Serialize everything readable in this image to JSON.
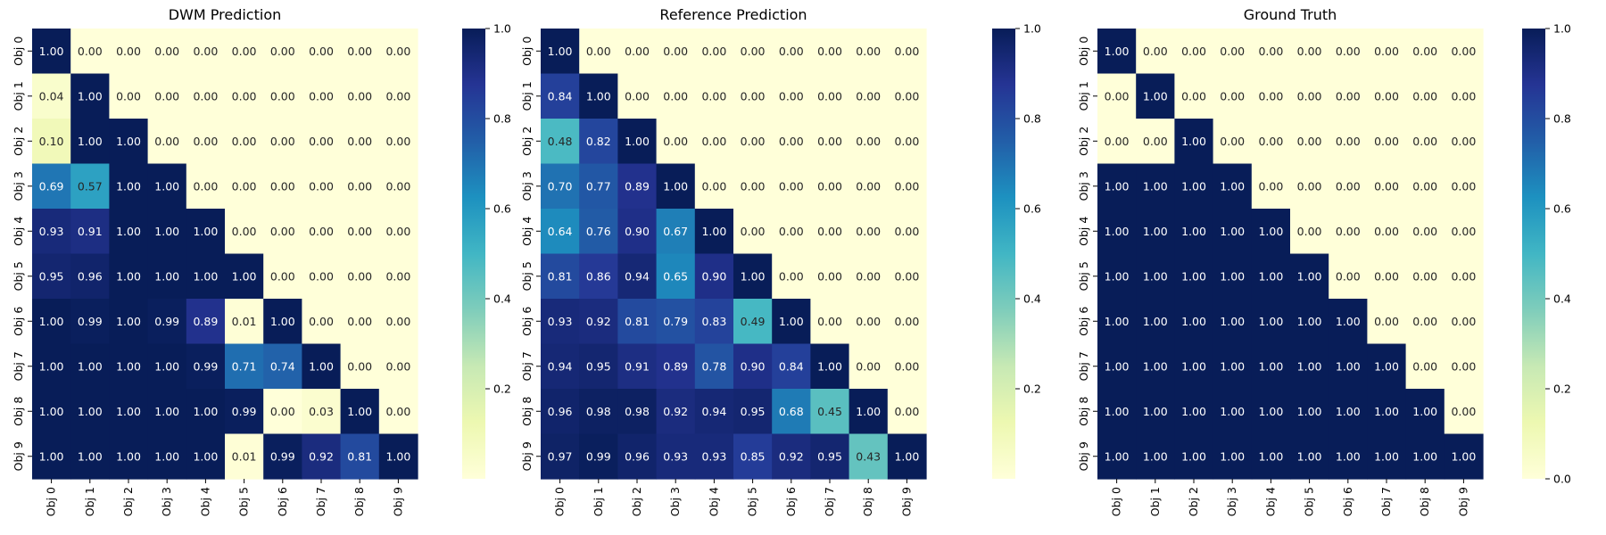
{
  "chart_data": [
    {
      "type": "heatmap",
      "title": "DWM Prediction",
      "x_labels": [
        "Obj 0",
        "Obj 1",
        "Obj 2",
        "Obj 3",
        "Obj 4",
        "Obj 5",
        "Obj 6",
        "Obj 7",
        "Obj 8",
        "Obj 9"
      ],
      "y_labels": [
        "Obj 0",
        "Obj 1",
        "Obj 2",
        "Obj 3",
        "Obj 4",
        "Obj 5",
        "Obj 6",
        "Obj 7",
        "Obj 8",
        "Obj 9"
      ],
      "values": [
        [
          1.0,
          0.0,
          0.0,
          0.0,
          0.0,
          0.0,
          0.0,
          0.0,
          0.0,
          0.0
        ],
        [
          0.04,
          1.0,
          0.0,
          0.0,
          0.0,
          0.0,
          0.0,
          0.0,
          0.0,
          0.0
        ],
        [
          0.1,
          1.0,
          1.0,
          0.0,
          0.0,
          0.0,
          0.0,
          0.0,
          0.0,
          0.0
        ],
        [
          0.69,
          0.57,
          1.0,
          1.0,
          0.0,
          0.0,
          0.0,
          0.0,
          0.0,
          0.0
        ],
        [
          0.93,
          0.91,
          1.0,
          1.0,
          1.0,
          0.0,
          0.0,
          0.0,
          0.0,
          0.0
        ],
        [
          0.95,
          0.96,
          1.0,
          1.0,
          1.0,
          1.0,
          0.0,
          0.0,
          0.0,
          0.0
        ],
        [
          1.0,
          0.99,
          1.0,
          0.99,
          0.89,
          0.01,
          1.0,
          0.0,
          0.0,
          0.0
        ],
        [
          1.0,
          1.0,
          1.0,
          1.0,
          0.99,
          0.71,
          0.74,
          1.0,
          0.0,
          0.0
        ],
        [
          1.0,
          1.0,
          1.0,
          1.0,
          1.0,
          0.99,
          0.0,
          0.03,
          1.0,
          0.0
        ],
        [
          1.0,
          1.0,
          1.0,
          1.0,
          1.0,
          0.01,
          0.99,
          0.92,
          0.81,
          1.0
        ]
      ],
      "colormap": "YlGnBu",
      "color_range": [
        0.0,
        1.0
      ],
      "colorbar_ticks": [
        0.2,
        0.4,
        0.6,
        0.8,
        1.0
      ]
    },
    {
      "type": "heatmap",
      "title": "Reference Prediction",
      "x_labels": [
        "Obj 0",
        "Obj 1",
        "Obj 2",
        "Obj 3",
        "Obj 4",
        "Obj 5",
        "Obj 6",
        "Obj 7",
        "Obj 8",
        "Obj 9"
      ],
      "y_labels": [
        "Obj 0",
        "Obj 1",
        "Obj 2",
        "Obj 3",
        "Obj 4",
        "Obj 5",
        "Obj 6",
        "Obj 7",
        "Obj 8",
        "Obj 9"
      ],
      "values": [
        [
          1.0,
          0.0,
          0.0,
          0.0,
          0.0,
          0.0,
          0.0,
          0.0,
          0.0,
          0.0
        ],
        [
          0.84,
          1.0,
          0.0,
          0.0,
          0.0,
          0.0,
          0.0,
          0.0,
          0.0,
          0.0
        ],
        [
          0.48,
          0.82,
          1.0,
          0.0,
          0.0,
          0.0,
          0.0,
          0.0,
          0.0,
          0.0
        ],
        [
          0.7,
          0.77,
          0.89,
          1.0,
          0.0,
          0.0,
          0.0,
          0.0,
          0.0,
          0.0
        ],
        [
          0.64,
          0.76,
          0.9,
          0.67,
          1.0,
          0.0,
          0.0,
          0.0,
          0.0,
          0.0
        ],
        [
          0.81,
          0.86,
          0.94,
          0.65,
          0.9,
          1.0,
          0.0,
          0.0,
          0.0,
          0.0
        ],
        [
          0.93,
          0.92,
          0.81,
          0.79,
          0.83,
          0.49,
          1.0,
          0.0,
          0.0,
          0.0
        ],
        [
          0.94,
          0.95,
          0.91,
          0.89,
          0.78,
          0.9,
          0.84,
          1.0,
          0.0,
          0.0
        ],
        [
          0.96,
          0.98,
          0.98,
          0.92,
          0.94,
          0.95,
          0.68,
          0.45,
          1.0,
          0.0
        ],
        [
          0.97,
          0.99,
          0.96,
          0.93,
          0.93,
          0.85,
          0.92,
          0.95,
          0.43,
          1.0
        ]
      ],
      "colormap": "YlGnBu",
      "color_range": [
        0.0,
        1.0
      ],
      "colorbar_ticks": [
        0.2,
        0.4,
        0.6,
        0.8,
        1.0
      ]
    },
    {
      "type": "heatmap",
      "title": "Ground Truth",
      "x_labels": [
        "Obj 0",
        "Obj 1",
        "Obj 2",
        "Obj 3",
        "Obj 4",
        "Obj 5",
        "Obj 6",
        "Obj 7",
        "Obj 8",
        "Obj 9"
      ],
      "y_labels": [
        "Obj 0",
        "Obj 1",
        "Obj 2",
        "Obj 3",
        "Obj 4",
        "Obj 5",
        "Obj 6",
        "Obj 7",
        "Obj 8",
        "Obj 9"
      ],
      "values": [
        [
          1.0,
          0.0,
          0.0,
          0.0,
          0.0,
          0.0,
          0.0,
          0.0,
          0.0,
          0.0
        ],
        [
          0.0,
          1.0,
          0.0,
          0.0,
          0.0,
          0.0,
          0.0,
          0.0,
          0.0,
          0.0
        ],
        [
          0.0,
          0.0,
          1.0,
          0.0,
          0.0,
          0.0,
          0.0,
          0.0,
          0.0,
          0.0
        ],
        [
          1.0,
          1.0,
          1.0,
          1.0,
          0.0,
          0.0,
          0.0,
          0.0,
          0.0,
          0.0
        ],
        [
          1.0,
          1.0,
          1.0,
          1.0,
          1.0,
          0.0,
          0.0,
          0.0,
          0.0,
          0.0
        ],
        [
          1.0,
          1.0,
          1.0,
          1.0,
          1.0,
          1.0,
          0.0,
          0.0,
          0.0,
          0.0
        ],
        [
          1.0,
          1.0,
          1.0,
          1.0,
          1.0,
          1.0,
          1.0,
          0.0,
          0.0,
          0.0
        ],
        [
          1.0,
          1.0,
          1.0,
          1.0,
          1.0,
          1.0,
          1.0,
          1.0,
          0.0,
          0.0
        ],
        [
          1.0,
          1.0,
          1.0,
          1.0,
          1.0,
          1.0,
          1.0,
          1.0,
          1.0,
          0.0
        ],
        [
          1.0,
          1.0,
          1.0,
          1.0,
          1.0,
          1.0,
          1.0,
          1.0,
          1.0,
          1.0
        ]
      ],
      "colormap": "YlGnBu",
      "color_range": [
        0.0,
        1.0
      ],
      "colorbar_ticks": [
        0.0,
        0.2,
        0.4,
        0.6,
        0.8,
        1.0
      ]
    }
  ]
}
